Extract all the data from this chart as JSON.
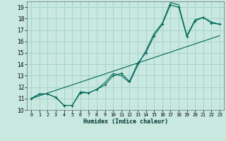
{
  "xlabel": "Humidex (Indice chaleur)",
  "ylabel": "",
  "bg_color": "#c8e8e0",
  "grid_color": "#a8d4cc",
  "line_color": "#006858",
  "xlim": [
    -0.5,
    23.5
  ],
  "ylim": [
    10,
    19.5
  ],
  "xticks": [
    0,
    1,
    2,
    3,
    4,
    5,
    6,
    7,
    8,
    9,
    10,
    11,
    12,
    13,
    14,
    15,
    16,
    17,
    18,
    19,
    20,
    21,
    22,
    23
  ],
  "yticks": [
    10,
    11,
    12,
    13,
    14,
    15,
    16,
    17,
    18,
    19
  ],
  "series1_x": [
    0,
    1,
    2,
    3,
    4,
    5,
    6,
    7,
    8,
    9,
    10,
    11,
    12,
    13,
    14,
    15,
    16,
    17,
    18,
    19,
    20,
    21,
    22,
    23
  ],
  "series1_y": [
    11.0,
    11.4,
    11.4,
    11.1,
    10.4,
    10.4,
    11.5,
    11.5,
    11.8,
    12.2,
    13.0,
    13.2,
    12.5,
    14.1,
    15.0,
    16.5,
    17.5,
    19.2,
    19.0,
    16.4,
    17.8,
    18.1,
    17.6,
    17.5
  ],
  "series2_x": [
    0,
    1,
    2,
    3,
    4,
    5,
    6,
    7,
    8,
    9,
    10,
    11,
    12,
    13,
    14,
    15,
    16,
    17,
    18,
    19,
    20,
    21,
    22,
    23
  ],
  "series2_y": [
    11.0,
    11.4,
    11.4,
    11.1,
    10.4,
    10.4,
    11.6,
    11.5,
    11.8,
    12.4,
    13.2,
    13.0,
    12.4,
    13.9,
    15.2,
    16.7,
    17.6,
    19.4,
    19.2,
    16.5,
    17.9,
    18.1,
    17.7,
    17.5
  ],
  "series3_x": [
    0,
    23
  ],
  "series3_y": [
    11.0,
    16.5
  ]
}
